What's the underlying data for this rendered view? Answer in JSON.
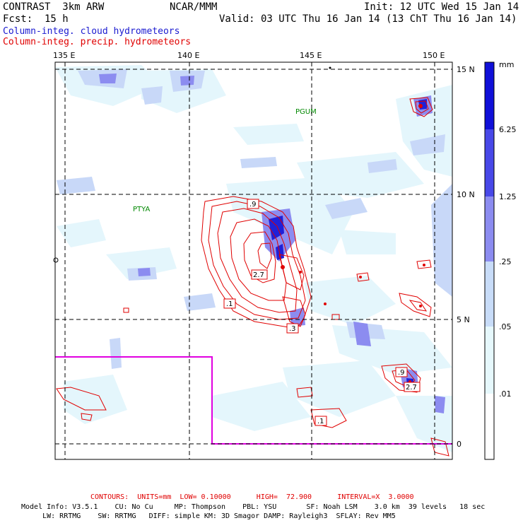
{
  "header": {
    "model": "CONTRAST  3km ARW",
    "org": "NCAR/MMM",
    "init": "Init: 12 UTC Wed 15 Jan 14",
    "fcst": "Fcst:  15 h",
    "valid": "Valid: 03 UTC Thu 16 Jan 14 (13 ChT Thu 16 Jan 14)",
    "field1": "Column-integ. cloud hydrometeors",
    "field2": "Column-integ. precip. hydrometeors"
  },
  "axes": {
    "lon_labels": [
      "135 E",
      "140 E",
      "145 E",
      "150 E"
    ],
    "lat_labels": [
      "15 N",
      "10 N",
      "5 N",
      "0"
    ]
  },
  "stations": [
    "PGUM",
    "PTYA"
  ],
  "contour_labels": [
    ".9",
    "2.7",
    ".1",
    ".3",
    ".9",
    "2.7",
    ".1"
  ],
  "colorbar": {
    "unit": "mm",
    "levels": [
      "6.25",
      "1.25",
      ".25",
      ".05",
      ".01"
    ],
    "colors": [
      "#1010d8",
      "#4848e8",
      "#8c8cf0",
      "#c8dcf8",
      "#e6f8fc",
      "#ffffff"
    ]
  },
  "footer": {
    "contours": "CONTOURS:  UNITS=mm  LOW= 0.10000      HIGH=  72.900      INTERVAL=X  3.0000",
    "line1": "Model Info: V3.5.1    CU: No Cu     MP: Thompson    PBL: YSU       SF: Noah LSM    3.0 km  39 levels   18 sec",
    "line2": "     LW: RRTMG    SW: RRTMG   DIFF: simple KM: 3D Smagor DAMP: Rayleigh3  SFLAY: Rev MM5"
  }
}
